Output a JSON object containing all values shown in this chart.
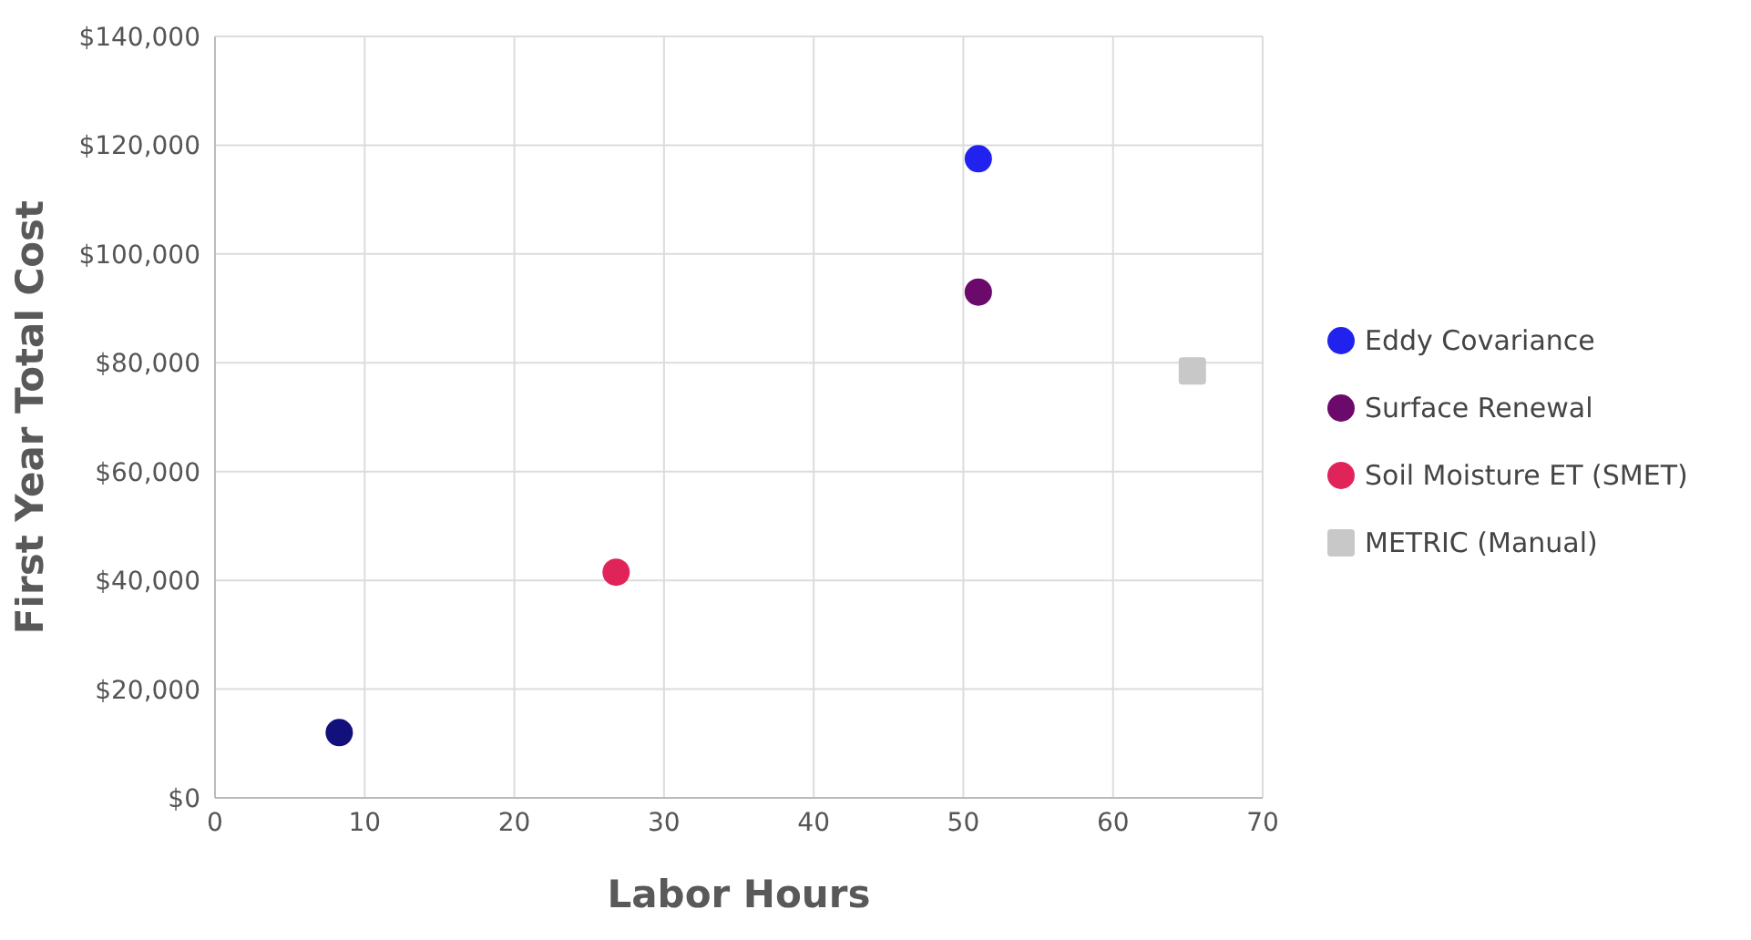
{
  "chart_data": {
    "type": "scatter",
    "xlabel": "Labor Hours",
    "ylabel": "First Year Total Cost",
    "xlim": [
      0,
      70
    ],
    "xticks": [
      0,
      10,
      20,
      30,
      40,
      50,
      60,
      70
    ],
    "ylim": [
      0,
      140000
    ],
    "yticks": [
      {
        "value": 0,
        "label": "$0"
      },
      {
        "value": 20000,
        "label": "$20,000"
      },
      {
        "value": 40000,
        "label": "$40,000"
      },
      {
        "value": 60000,
        "label": "$60,000"
      },
      {
        "value": 80000,
        "label": "$80,000"
      },
      {
        "value": 100000,
        "label": "$100,000"
      },
      {
        "value": 120000,
        "label": "$120,000"
      },
      {
        "value": 140000,
        "label": "$140,000"
      }
    ],
    "grid": true,
    "legend": "right",
    "marker": "circle",
    "series": [
      {
        "name": "Eddy Covariance",
        "color": "#2222ee",
        "x": [
          51
        ],
        "values": [
          117500
        ]
      },
      {
        "name": "Surface Renewal",
        "color": "#6b0a6b",
        "x": [
          51
        ],
        "values": [
          93000
        ]
      },
      {
        "name": "Soil Moisture ET (SMET)",
        "color": "#e0245a",
        "x": [
          26.8
        ],
        "values": [
          41500
        ]
      },
      {
        "name": "METRIC (Manual)",
        "color": "#c8c8c8",
        "marker": "square",
        "x": [
          65.3
        ],
        "values": [
          78500
        ]
      },
      {
        "color": "#12107a",
        "x": [
          8.3
        ],
        "values": [
          12000
        ]
      }
    ]
  }
}
